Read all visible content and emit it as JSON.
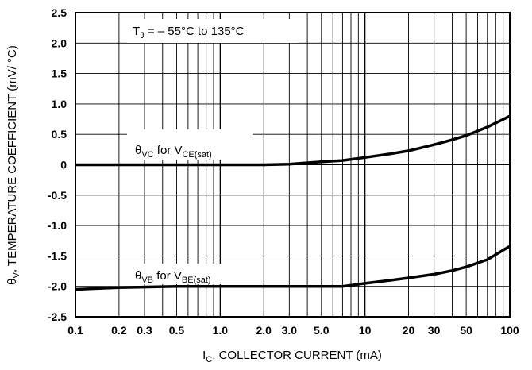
{
  "chart_data": {
    "type": "line",
    "x_scale": "log",
    "xlim": [
      0.1,
      100
    ],
    "ylim": [
      -2.5,
      2.5
    ],
    "grid": true,
    "xlabel": {
      "main": "I",
      "sub": "C",
      "rest": ", COLLECTOR CURRENT (mA)"
    },
    "ylabel": {
      "main": "θ",
      "sub": "V",
      "rest": ", TEMPERATURE COEFFICIENT (mV/ °C)"
    },
    "x_ticks": [
      {
        "value": 0.1,
        "label": "0.1"
      },
      {
        "value": 0.2,
        "label": "0.2"
      },
      {
        "value": 0.3,
        "label": "0.3"
      },
      {
        "value": 0.5,
        "label": "0.5"
      },
      {
        "value": 1.0,
        "label": "1.0"
      },
      {
        "value": 2.0,
        "label": "2.0"
      },
      {
        "value": 3.0,
        "label": "3.0"
      },
      {
        "value": 5.0,
        "label": "5.0"
      },
      {
        "value": 10,
        "label": "10"
      },
      {
        "value": 20,
        "label": "20"
      },
      {
        "value": 30,
        "label": "30"
      },
      {
        "value": 50,
        "label": "50"
      },
      {
        "value": 100,
        "label": "100"
      }
    ],
    "y_ticks": [
      {
        "value": 2.5,
        "label": "2.5"
      },
      {
        "value": 2.0,
        "label": "2.0"
      },
      {
        "value": 1.5,
        "label": "1.5"
      },
      {
        "value": 1.0,
        "label": "1.0"
      },
      {
        "value": 0.5,
        "label": "0.5"
      },
      {
        "value": 0,
        "label": "0"
      },
      {
        "value": -0.5,
        "label": "-0.5"
      },
      {
        "value": -1.0,
        "label": "-1.0"
      },
      {
        "value": -1.5,
        "label": "-1.5"
      },
      {
        "value": -2.0,
        "label": "-2.0"
      },
      {
        "value": -2.5,
        "label": "-2.5"
      }
    ],
    "annotation": {
      "prefix": "T",
      "sub": "J",
      "rest": " = – 55°C to 135°C"
    },
    "series": [
      {
        "name": {
          "theta_sub": "VC",
          "mid": " for V",
          "v_sub": "CE(sat)"
        },
        "x": [
          0.1,
          0.2,
          0.5,
          1.0,
          2.0,
          3.0,
          5.0,
          7.0,
          10,
          15,
          20,
          30,
          40,
          50,
          70,
          100
        ],
        "y": [
          0.0,
          0.0,
          0.0,
          0.0,
          0.0,
          0.01,
          0.05,
          0.07,
          0.12,
          0.18,
          0.23,
          0.33,
          0.41,
          0.48,
          0.62,
          0.8
        ]
      },
      {
        "name": {
          "theta_sub": "VB",
          "mid": " for V",
          "v_sub": "BE(sat)"
        },
        "x": [
          0.1,
          0.2,
          0.5,
          1.0,
          2.0,
          5.0,
          7.0,
          10,
          15,
          20,
          30,
          40,
          50,
          70,
          100
        ],
        "y": [
          -2.05,
          -2.02,
          -2.0,
          -2.0,
          -2.0,
          -2.0,
          -2.0,
          -1.95,
          -1.9,
          -1.86,
          -1.8,
          -1.74,
          -1.68,
          -1.56,
          -1.34
        ]
      }
    ]
  }
}
